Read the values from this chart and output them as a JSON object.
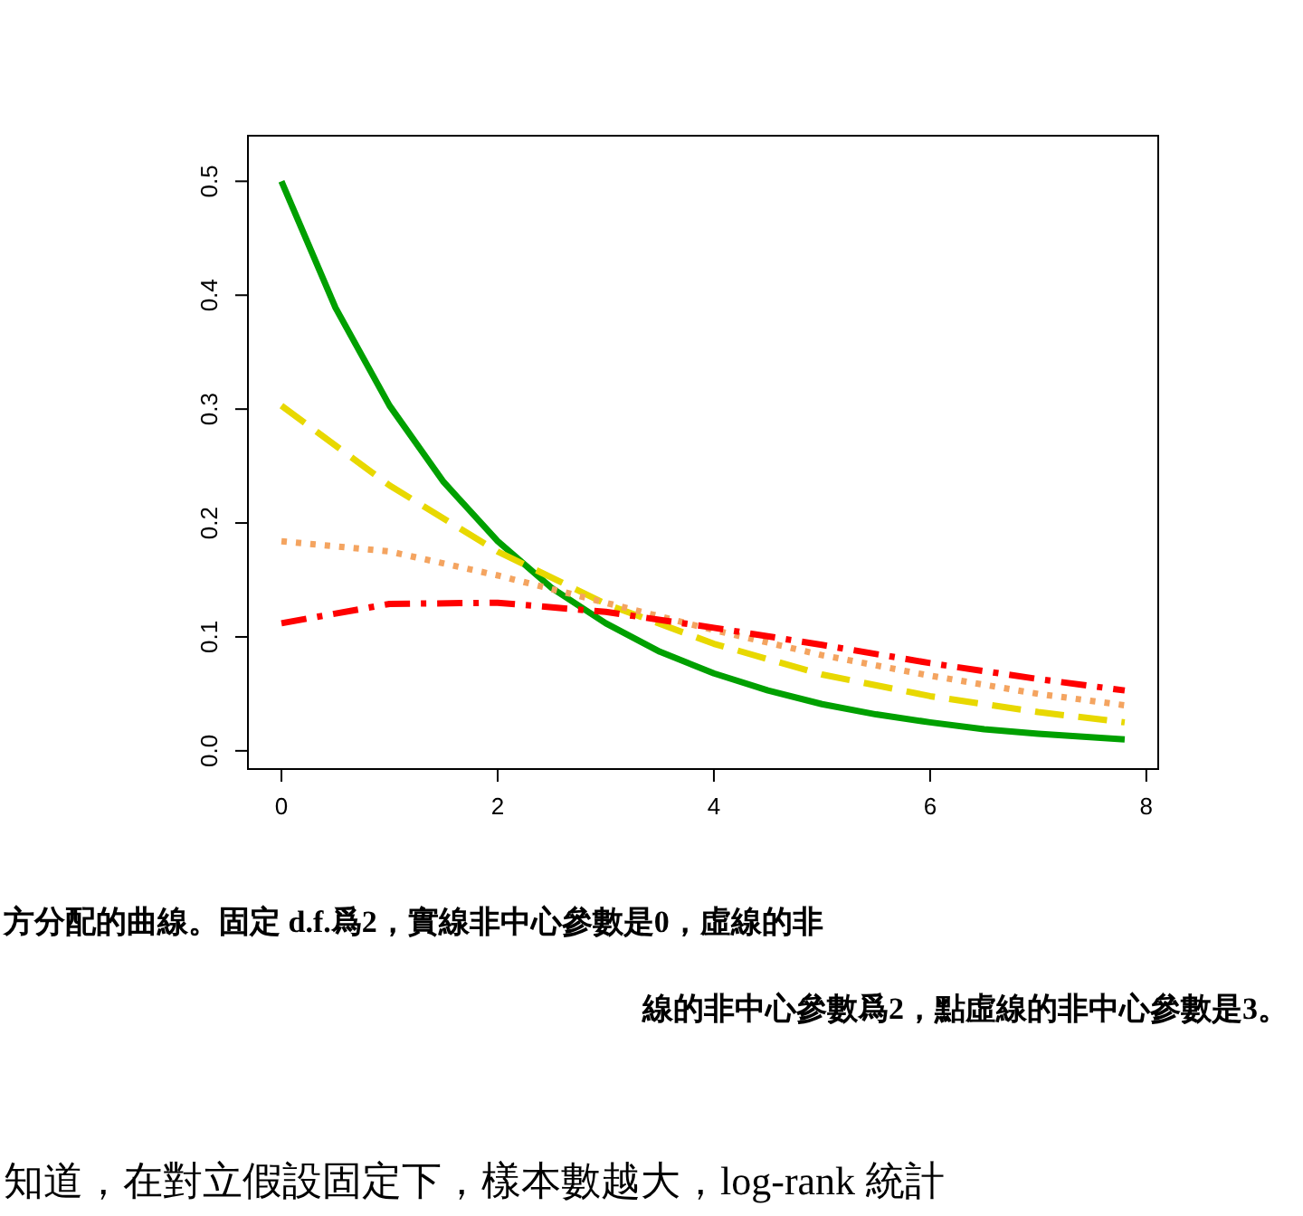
{
  "chart_data": {
    "type": "line",
    "xlim": [
      -0.31,
      8.11
    ],
    "ylim": [
      -0.016,
      0.54
    ],
    "xticks": [
      0,
      2,
      4,
      6,
      8
    ],
    "yticks": [
      {
        "value": 0,
        "label": "0.0"
      },
      0.1,
      0.2,
      0.3,
      0.4,
      0.5
    ],
    "grid": false,
    "marker": "none",
    "series": [
      {
        "color": "#00a000",
        "line_style": "solid",
        "x": [
          0,
          0.5,
          1,
          1.5,
          2,
          2.5,
          3,
          3.5,
          4,
          4.5,
          5,
          5.5,
          6,
          6.5,
          7,
          7.8
        ],
        "values": [
          0.5,
          0.389,
          0.303,
          0.236,
          0.184,
          0.143,
          0.112,
          0.087,
          0.068,
          0.053,
          0.041,
          0.032,
          0.025,
          0.019,
          0.015,
          0.01
        ]
      },
      {
        "color": "#e8d800",
        "line_style": "dashed",
        "x": [
          0,
          1,
          2,
          3,
          4,
          5,
          6,
          7,
          7.8
        ],
        "values": [
          0.303,
          0.233,
          0.175,
          0.129,
          0.094,
          0.067,
          0.048,
          0.034,
          0.025
        ]
      },
      {
        "color": "#f4a460",
        "line_style": "dotted",
        "x": [
          0,
          1,
          2,
          3,
          4,
          5,
          6,
          7,
          7.8
        ],
        "values": [
          0.184,
          0.175,
          0.154,
          0.13,
          0.106,
          0.084,
          0.066,
          0.05,
          0.04
        ]
      },
      {
        "color": "#ff0000",
        "line_style": "dashdot",
        "x": [
          0,
          1,
          2,
          3,
          4,
          5,
          6,
          7,
          7.8
        ],
        "values": [
          0.112,
          0.129,
          0.13,
          0.122,
          0.108,
          0.093,
          0.077,
          0.063,
          0.053
        ]
      }
    ],
    "annotations": [
      "方分配的曲線。固定 d.f.爲2，實線非中心參數是0，虛線的非",
      "線的非中心參數爲2，點虛線的非中心參數是3。",
      "知道，在對立假設固定下，樣本數越大，log-rank 統計"
    ]
  }
}
